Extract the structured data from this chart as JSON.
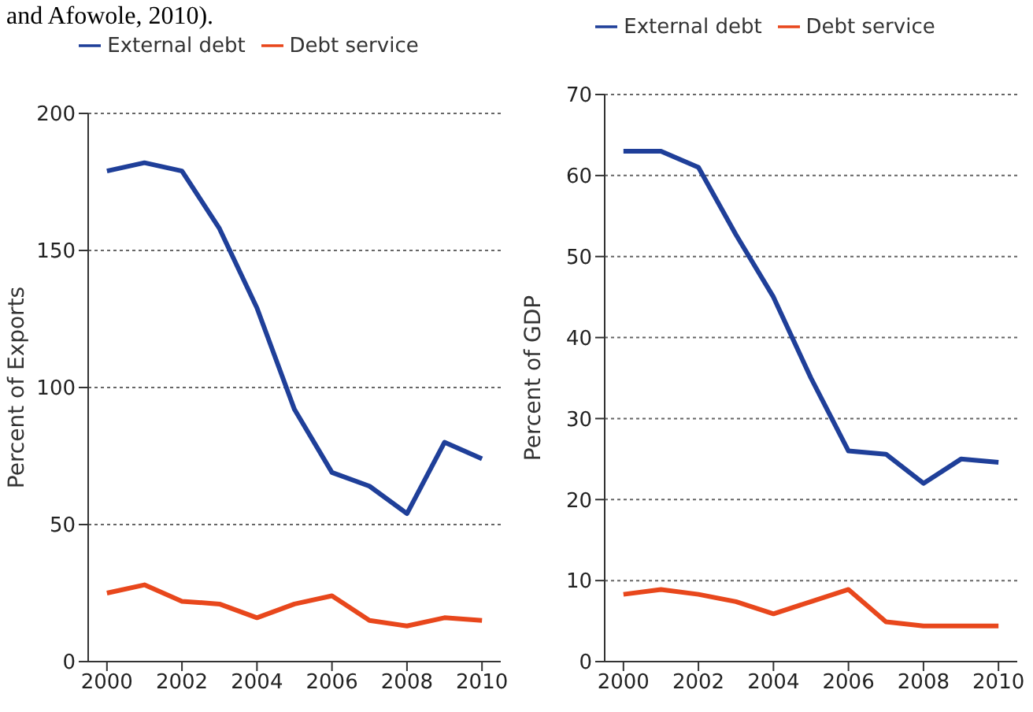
{
  "chart_data": [
    {
      "type": "line",
      "ylabel": "Percent of Exports",
      "annotations": [
        "and Afowole, 2010)."
      ],
      "x": [
        2000,
        2001,
        2002,
        2003,
        2004,
        2005,
        2006,
        2007,
        2008,
        2009,
        2010
      ],
      "series": [
        {
          "name": "External debt",
          "color": "#1f3f99",
          "values": [
            179,
            182,
            179,
            158,
            129,
            92,
            69,
            64,
            54,
            80,
            74
          ]
        },
        {
          "name": "Debt service",
          "color": "#e8471c",
          "values": [
            25,
            28,
            22,
            21,
            16,
            21,
            24,
            15,
            13,
            16,
            15
          ]
        }
      ],
      "xlim": [
        1999.5,
        2010.5
      ],
      "xticks": [
        2000,
        2002,
        2004,
        2006,
        2008,
        2010
      ],
      "ylim": [
        0,
        200
      ],
      "yticks": [
        0,
        50,
        100,
        150,
        200
      ],
      "grid": "y",
      "legend": "top",
      "line_style": "solid",
      "marker": "none"
    },
    {
      "type": "line",
      "ylabel": "Percent of GDP",
      "x": [
        2000,
        2001,
        2002,
        2003,
        2004,
        2005,
        2006,
        2007,
        2008,
        2009,
        2010
      ],
      "series": [
        {
          "name": "External debt",
          "color": "#1f3f99",
          "values": [
            63,
            63,
            61,
            52.7,
            45,
            35,
            26,
            25.6,
            22,
            25,
            24.6
          ]
        },
        {
          "name": "Debt service",
          "color": "#e8471c",
          "values": [
            8.3,
            8.9,
            8.3,
            7.4,
            5.9,
            7.4,
            8.9,
            4.9,
            4.4,
            4.4,
            4.4
          ]
        }
      ],
      "xlim": [
        1999.5,
        2010.5
      ],
      "xticks": [
        2000,
        2002,
        2004,
        2006,
        2008,
        2010
      ],
      "ylim": [
        0,
        70
      ],
      "yticks": [
        0,
        10,
        20,
        30,
        40,
        50,
        60,
        70
      ],
      "grid": "y",
      "legend": "top",
      "line_style": "solid",
      "marker": "none"
    }
  ]
}
